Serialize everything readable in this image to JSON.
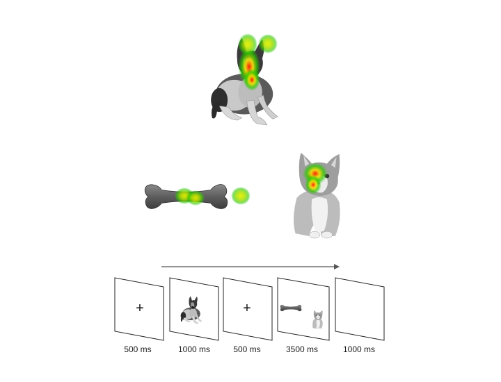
{
  "stimuli": {
    "dog": {
      "name": "dog-photo"
    },
    "bone": {
      "name": "bone-photo"
    },
    "cat": {
      "name": "cat-photo"
    }
  },
  "heatmap": {
    "colors": [
      "#00c800",
      "#e6f000",
      "#ff1a00"
    ],
    "fixations": [
      {
        "target": "dog",
        "region": "ears-and-face"
      },
      {
        "target": "bone",
        "region": "center"
      },
      {
        "target": "blank",
        "region": "between bone and cat"
      },
      {
        "target": "cat",
        "region": "face"
      }
    ]
  },
  "timeline": {
    "arrow_direction": "right",
    "frames": [
      {
        "content": "fixation-cross",
        "glyph": "+",
        "duration": "500 ms"
      },
      {
        "content": "dog",
        "duration": "1000 ms"
      },
      {
        "content": "fixation-cross",
        "glyph": "+",
        "duration": "500 ms"
      },
      {
        "content": "bone-and-cat",
        "duration": "3500 ms"
      },
      {
        "content": "blank",
        "duration": "1000 ms"
      }
    ]
  }
}
